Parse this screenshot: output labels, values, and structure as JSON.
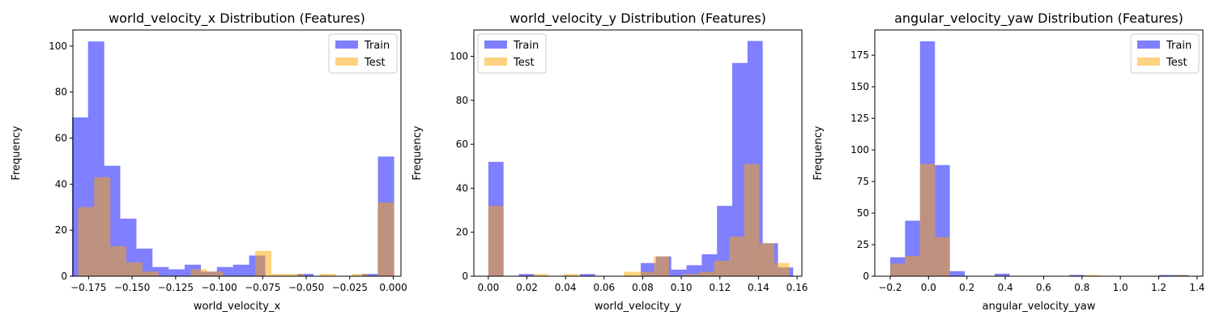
{
  "chart_data": [
    {
      "type": "histogram",
      "title": "world_velocity_x Distribution (Features)",
      "xlabel": "world_velocity_x",
      "ylabel": "Frequency",
      "xlim": [
        -0.184,
        0.0044
      ],
      "ylim": [
        0,
        107
      ],
      "xticks": [
        -0.175,
        -0.15,
        -0.125,
        -0.1,
        -0.075,
        -0.05,
        -0.025,
        0.0
      ],
      "xtick_labels": [
        "−0.175",
        "−0.150",
        "−0.125",
        "−0.100",
        "−0.075",
        "−0.050",
        "−0.025",
        "0.000"
      ],
      "yticks": [
        0,
        20,
        40,
        60,
        80,
        100
      ],
      "ytick_labels": [
        "0",
        "20",
        "40",
        "60",
        "80",
        "100"
      ],
      "legend": {
        "position": "top-right",
        "entries": [
          "Train",
          "Test"
        ]
      },
      "series": [
        {
          "name": "Train",
          "color": "#0000ff",
          "opacity": 0.5,
          "bins": [
            [
              -0.1845,
              -0.1753,
              69
            ],
            [
              -0.1753,
              -0.166,
              102
            ],
            [
              -0.166,
              -0.1568,
              48
            ],
            [
              -0.1568,
              -0.1475,
              25
            ],
            [
              -0.1475,
              -0.1383,
              12
            ],
            [
              -0.1383,
              -0.129,
              4
            ],
            [
              -0.129,
              -0.1198,
              3
            ],
            [
              -0.1198,
              -0.1105,
              5
            ],
            [
              -0.1105,
              -0.1013,
              2
            ],
            [
              -0.1013,
              -0.092,
              4
            ],
            [
              -0.092,
              -0.0828,
              5
            ],
            [
              -0.0828,
              -0.0735,
              9
            ],
            [
              -0.0735,
              -0.0643,
              0
            ],
            [
              -0.0643,
              -0.055,
              0
            ],
            [
              -0.055,
              -0.0458,
              1
            ],
            [
              -0.0458,
              -0.0365,
              0
            ],
            [
              -0.0365,
              -0.0273,
              0
            ],
            [
              -0.0273,
              -0.018,
              0
            ],
            [
              -0.018,
              -0.0088,
              1
            ],
            [
              -0.0088,
              0.0005,
              52
            ]
          ]
        },
        {
          "name": "Test",
          "color": "#ffa500",
          "opacity": 0.5,
          "bins": [
            [
              -0.181,
              -0.1718,
              30
            ],
            [
              -0.1718,
              -0.1625,
              43
            ],
            [
              -0.1625,
              -0.1533,
              13
            ],
            [
              -0.1533,
              -0.144,
              6
            ],
            [
              -0.144,
              -0.1348,
              2
            ],
            [
              -0.1348,
              -0.1255,
              0
            ],
            [
              -0.1255,
              -0.1163,
              0
            ],
            [
              -0.1163,
              -0.107,
              3
            ],
            [
              -0.107,
              -0.0978,
              2
            ],
            [
              -0.0978,
              -0.0885,
              0
            ],
            [
              -0.0885,
              -0.0793,
              0
            ],
            [
              -0.0793,
              -0.07,
              11
            ],
            [
              -0.07,
              -0.0608,
              1
            ],
            [
              -0.0608,
              -0.0515,
              1
            ],
            [
              -0.0515,
              -0.0423,
              0
            ],
            [
              -0.0423,
              -0.033,
              1
            ],
            [
              -0.033,
              -0.0238,
              0
            ],
            [
              -0.0238,
              -0.0145,
              1
            ],
            [
              -0.0145,
              -0.0053,
              0
            ],
            [
              -0.009,
              0.0005,
              32
            ]
          ]
        }
      ]
    },
    {
      "type": "histogram",
      "title": "world_velocity_y Distribution (Features)",
      "xlabel": "world_velocity_y",
      "ylabel": "Frequency",
      "xlim": [
        -0.0075,
        0.1625
      ],
      "ylim": [
        0,
        112
      ],
      "xticks": [
        0.0,
        0.02,
        0.04,
        0.06,
        0.08,
        0.1,
        0.12,
        0.14,
        0.16
      ],
      "xtick_labels": [
        "0.00",
        "0.02",
        "0.04",
        "0.06",
        "0.08",
        "0.10",
        "0.12",
        "0.14",
        "0.16"
      ],
      "yticks": [
        0,
        20,
        40,
        60,
        80,
        100
      ],
      "ytick_labels": [
        "0",
        "20",
        "40",
        "60",
        "80",
        "100"
      ],
      "legend": {
        "position": "top-left",
        "entries": [
          "Train",
          "Test"
        ]
      },
      "series": [
        {
          "name": "Train",
          "color": "#0000ff",
          "opacity": 0.5,
          "bins": [
            [
              0.0,
              0.0079,
              52
            ],
            [
              0.0079,
              0.0158,
              0
            ],
            [
              0.0158,
              0.0237,
              1
            ],
            [
              0.0237,
              0.0316,
              0
            ],
            [
              0.0316,
              0.0395,
              0
            ],
            [
              0.0395,
              0.0474,
              0
            ],
            [
              0.0474,
              0.0553,
              1
            ],
            [
              0.0553,
              0.0632,
              0
            ],
            [
              0.0632,
              0.0711,
              0
            ],
            [
              0.0711,
              0.079,
              0
            ],
            [
              0.079,
              0.0869,
              6
            ],
            [
              0.0869,
              0.0948,
              9
            ],
            [
              0.0948,
              0.1027,
              3
            ],
            [
              0.1027,
              0.1106,
              5
            ],
            [
              0.1106,
              0.1185,
              10
            ],
            [
              0.1185,
              0.1264,
              32
            ],
            [
              0.1264,
              0.1343,
              97
            ],
            [
              0.1343,
              0.1422,
              107
            ],
            [
              0.1422,
              0.1501,
              15
            ],
            [
              0.1501,
              0.158,
              4
            ]
          ]
        },
        {
          "name": "Test",
          "color": "#ffa500",
          "opacity": 0.5,
          "bins": [
            [
              0.0,
              0.0078,
              32
            ],
            [
              0.0078,
              0.0156,
              0
            ],
            [
              0.0156,
              0.0234,
              0
            ],
            [
              0.0234,
              0.0312,
              1
            ],
            [
              0.0312,
              0.039,
              0
            ],
            [
              0.039,
              0.0468,
              1
            ],
            [
              0.0468,
              0.0546,
              0
            ],
            [
              0.0546,
              0.0624,
              0
            ],
            [
              0.0624,
              0.0702,
              0
            ],
            [
              0.0702,
              0.078,
              2
            ],
            [
              0.078,
              0.0858,
              2
            ],
            [
              0.0858,
              0.0936,
              9
            ],
            [
              0.0936,
              0.1014,
              0
            ],
            [
              0.1014,
              0.1092,
              1
            ],
            [
              0.1092,
              0.117,
              2
            ],
            [
              0.117,
              0.1248,
              7
            ],
            [
              0.1248,
              0.1326,
              18
            ],
            [
              0.1326,
              0.1404,
              51
            ],
            [
              0.1404,
              0.1482,
              15
            ],
            [
              0.1482,
              0.156,
              6
            ]
          ]
        }
      ]
    },
    {
      "type": "histogram",
      "title": "angular_velocity_yaw Distribution (Features)",
      "xlabel": "angular_velocity_yaw",
      "ylabel": "Frequency",
      "xlim": [
        -0.28,
        1.43
      ],
      "ylim": [
        0,
        195
      ],
      "xticks": [
        -0.2,
        0.0,
        0.2,
        0.4,
        0.6,
        0.8,
        1.0,
        1.2,
        1.4
      ],
      "xtick_labels": [
        "−0.2",
        "0.0",
        "0.2",
        "0.4",
        "0.6",
        "0.8",
        "1.0",
        "1.2",
        "1.4"
      ],
      "yticks": [
        0,
        25,
        50,
        75,
        100,
        125,
        150,
        175
      ],
      "ytick_labels": [
        "0",
        "25",
        "50",
        "75",
        "100",
        "125",
        "150",
        "175"
      ],
      "legend": {
        "position": "top-right",
        "entries": [
          "Train",
          "Test"
        ]
      },
      "series": [
        {
          "name": "Train",
          "color": "#0000ff",
          "opacity": 0.5,
          "bins": [
            [
              -0.2,
              -0.1222,
              15
            ],
            [
              -0.1222,
              -0.0444,
              44
            ],
            [
              -0.0444,
              0.0334,
              186
            ],
            [
              0.0334,
              0.1112,
              88
            ],
            [
              0.1112,
              0.189,
              4
            ],
            [
              0.189,
              0.2668,
              0
            ],
            [
              0.2668,
              0.3446,
              0
            ],
            [
              0.3446,
              0.4224,
              2
            ],
            [
              0.4224,
              0.5002,
              0
            ],
            [
              0.5002,
              0.578,
              0
            ],
            [
              0.578,
              0.6558,
              0
            ],
            [
              0.6558,
              0.7336,
              0
            ],
            [
              0.7336,
              0.8114,
              1
            ],
            [
              0.8114,
              0.8892,
              0
            ],
            [
              0.8892,
              0.967,
              0
            ],
            [
              0.967,
              1.0448,
              0
            ],
            [
              1.0448,
              1.1226,
              0
            ],
            [
              1.1226,
              1.2004,
              0
            ],
            [
              1.2004,
              1.2782,
              1
            ],
            [
              1.2782,
              1.356,
              1
            ]
          ]
        },
        {
          "name": "Test",
          "color": "#ffa500",
          "opacity": 0.5,
          "bins": [
            [
              -0.2,
              -0.1222,
              10
            ],
            [
              -0.1222,
              -0.0444,
              16
            ],
            [
              -0.0444,
              0.0334,
              89
            ],
            [
              0.0334,
              0.1112,
              31
            ],
            [
              0.1112,
              0.189,
              0
            ],
            [
              0.189,
              0.2668,
              0
            ],
            [
              0.2668,
              0.3446,
              0
            ],
            [
              0.3446,
              0.4224,
              0
            ],
            [
              0.4224,
              0.5002,
              0
            ],
            [
              0.5002,
              0.578,
              0
            ],
            [
              0.578,
              0.6558,
              0
            ],
            [
              0.6558,
              0.7336,
              0
            ],
            [
              0.7336,
              0.8114,
              0
            ],
            [
              0.8114,
              0.8892,
              1
            ],
            [
              0.8892,
              0.967,
              0
            ],
            [
              0.967,
              1.0448,
              0
            ],
            [
              1.0448,
              1.1226,
              0
            ],
            [
              1.1226,
              1.2004,
              0
            ],
            [
              1.2004,
              1.2782,
              0
            ],
            [
              1.2782,
              1.356,
              1
            ]
          ]
        }
      ]
    }
  ]
}
